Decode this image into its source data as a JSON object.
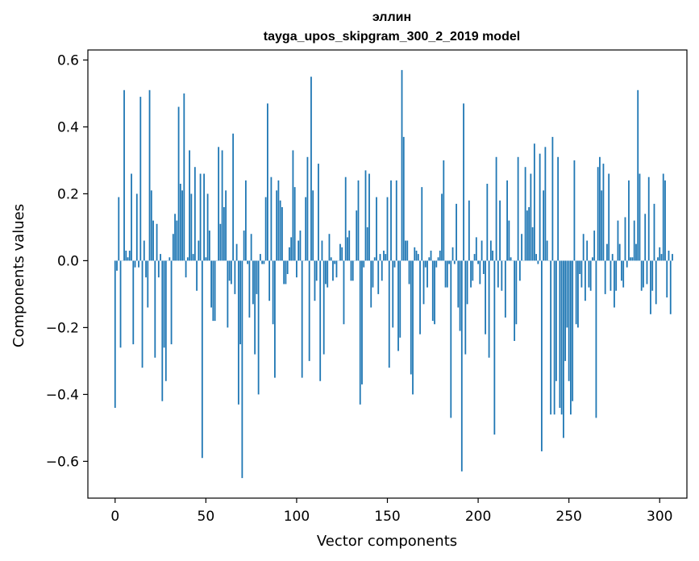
{
  "chart_data": {
    "type": "bar",
    "title_line1": "эллин",
    "title_line2": "tayga_upos_skipgram_300_2_2019 model",
    "xlabel": "Vector components",
    "ylabel": "Components values",
    "xlim": [
      -15,
      315
    ],
    "ylim": [
      -0.71,
      0.63
    ],
    "x_ticks": [
      0,
      50,
      100,
      150,
      200,
      250,
      300
    ],
    "y_ticks": [
      -0.6,
      -0.4,
      -0.2,
      0.0,
      0.2,
      0.4,
      0.6
    ],
    "y_tick_labels": [
      "−0.6",
      "−0.4",
      "−0.2",
      "0.0",
      "0.2",
      "0.4",
      "0.6"
    ],
    "bar_color": "#1f77b4",
    "values": [
      -0.44,
      -0.03,
      0.19,
      -0.26,
      0.0,
      0.51,
      0.03,
      0.01,
      0.03,
      0.26,
      -0.25,
      -0.02,
      0.2,
      -0.02,
      0.49,
      -0.32,
      0.06,
      -0.05,
      -0.14,
      0.51,
      0.21,
      0.12,
      -0.29,
      0.11,
      -0.05,
      0.02,
      -0.42,
      -0.26,
      -0.36,
      0.0,
      0.01,
      -0.25,
      0.08,
      0.14,
      0.12,
      0.46,
      0.23,
      0.21,
      0.5,
      -0.05,
      0.01,
      0.33,
      0.2,
      0.02,
      0.28,
      -0.09,
      0.06,
      0.26,
      -0.59,
      0.26,
      0.01,
      0.2,
      0.09,
      -0.14,
      -0.18,
      -0.18,
      0.0,
      0.34,
      0.11,
      0.33,
      0.16,
      0.21,
      -0.2,
      -0.06,
      -0.07,
      0.38,
      -0.1,
      0.05,
      -0.43,
      -0.25,
      -0.65,
      0.09,
      0.24,
      -0.01,
      -0.17,
      0.08,
      -0.13,
      -0.28,
      -0.1,
      -0.4,
      0.02,
      -0.01,
      -0.01,
      0.19,
      0.47,
      -0.12,
      0.25,
      -0.19,
      -0.35,
      0.21,
      0.24,
      0.18,
      0.16,
      -0.07,
      -0.07,
      -0.04,
      0.04,
      0.07,
      0.33,
      0.22,
      -0.05,
      0.06,
      0.09,
      -0.35,
      0.0,
      0.19,
      0.31,
      -0.3,
      0.55,
      0.21,
      -0.12,
      -0.06,
      0.29,
      -0.36,
      0.06,
      -0.28,
      -0.07,
      -0.08,
      0.08,
      0.01,
      -0.06,
      -0.01,
      -0.05,
      0.0,
      0.05,
      0.04,
      -0.19,
      0.25,
      0.07,
      0.09,
      -0.06,
      -0.06,
      0.0,
      0.15,
      0.24,
      -0.43,
      -0.37,
      -0.02,
      0.27,
      0.1,
      0.26,
      -0.14,
      -0.08,
      0.01,
      0.19,
      -0.1,
      0.02,
      -0.06,
      0.03,
      0.02,
      0.19,
      -0.32,
      0.24,
      -0.2,
      -0.02,
      0.24,
      -0.27,
      -0.23,
      0.57,
      0.37,
      0.06,
      0.06,
      -0.07,
      -0.34,
      -0.4,
      0.04,
      0.03,
      0.02,
      -0.22,
      0.22,
      -0.13,
      -0.02,
      -0.08,
      0.01,
      0.03,
      -0.18,
      -0.19,
      -0.02,
      0.01,
      0.03,
      0.2,
      0.3,
      -0.08,
      -0.08,
      -0.01,
      -0.47,
      0.04,
      -0.01,
      0.17,
      -0.14,
      -0.21,
      -0.63,
      0.47,
      -0.28,
      -0.13,
      0.18,
      -0.08,
      -0.06,
      0.02,
      0.07,
      -0.01,
      -0.07,
      0.06,
      -0.04,
      -0.22,
      0.23,
      -0.29,
      0.06,
      0.03,
      -0.52,
      0.31,
      -0.08,
      0.18,
      -0.09,
      0.0,
      -0.17,
      0.24,
      0.12,
      0.01,
      0.0,
      -0.24,
      -0.19,
      0.31,
      -0.06,
      0.08,
      0.0,
      0.28,
      0.15,
      0.16,
      0.26,
      0.1,
      0.35,
      0.02,
      -0.01,
      0.32,
      -0.57,
      0.21,
      0.34,
      0.06,
      0.0,
      -0.46,
      0.37,
      -0.46,
      -0.36,
      0.31,
      -0.44,
      -0.46,
      -0.53,
      -0.3,
      -0.2,
      -0.36,
      -0.46,
      -0.42,
      0.3,
      -0.19,
      -0.2,
      -0.04,
      -0.08,
      0.08,
      -0.12,
      0.06,
      -0.08,
      -0.09,
      0.01,
      0.09,
      -0.47,
      0.28,
      0.31,
      0.21,
      0.29,
      -0.1,
      0.05,
      0.26,
      -0.09,
      0.02,
      -0.14,
      -0.09,
      0.12,
      0.05,
      -0.06,
      -0.08,
      0.13,
      -0.02,
      0.24,
      0.01,
      0.01,
      0.12,
      0.05,
      0.51,
      0.26,
      -0.09,
      -0.08,
      0.14,
      -0.07,
      0.25,
      -0.16,
      -0.09,
      0.17,
      -0.13,
      0.01,
      0.04,
      0.02,
      0.26,
      0.24,
      -0.11,
      0.03,
      -0.16,
      0.02
    ]
  }
}
